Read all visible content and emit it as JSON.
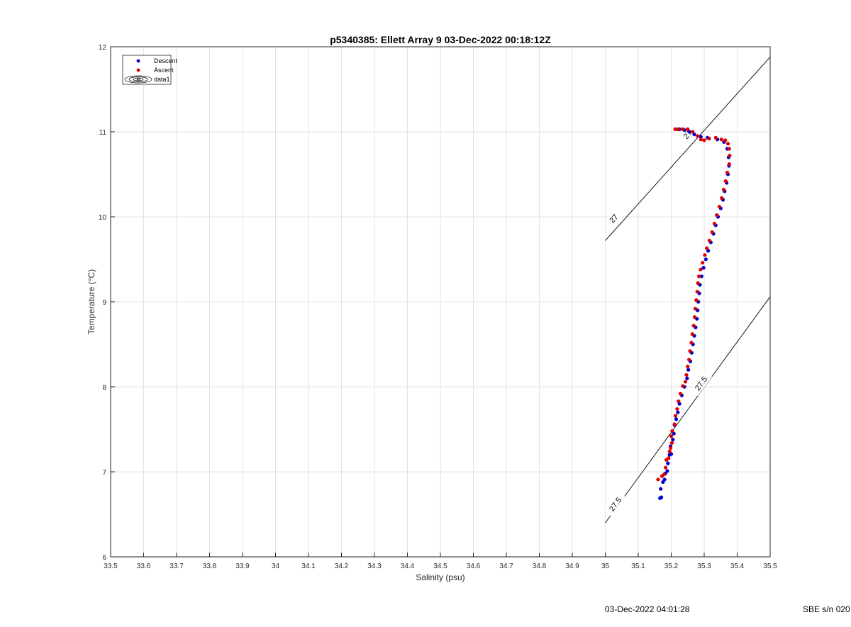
{
  "chart_data": {
    "type": "scatter",
    "title": "p5340385: Ellett Array 9 03-Dec-2022 00:18:12Z",
    "xlabel": "Salinity (psu)",
    "ylabel": "Temperature (°C)",
    "xlim": [
      33.5,
      35.5
    ],
    "ylim": [
      6,
      12
    ],
    "xticks": [
      "33.5",
      "33.6",
      "33.7",
      "33.8",
      "33.9",
      "34",
      "34.1",
      "34.2",
      "34.3",
      "34.4",
      "34.5",
      "34.6",
      "34.7",
      "34.8",
      "34.9",
      "35",
      "35.1",
      "35.2",
      "35.3",
      "35.4",
      "35.5"
    ],
    "yticks": [
      "6",
      "7",
      "8",
      "9",
      "10",
      "11",
      "12"
    ],
    "grid": true,
    "legend_position": "top-left",
    "legend": [
      {
        "name": "Descent",
        "color": "#0000cc"
      },
      {
        "name": "Ascent",
        "color": "#dd0000"
      },
      {
        "name": "data1",
        "color": "#000000"
      }
    ],
    "series": [
      {
        "name": "Descent",
        "color": "#0000cc",
        "points": [
          [
            35.166,
            6.69
          ],
          [
            35.17,
            6.7
          ],
          [
            35.168,
            6.8
          ],
          [
            35.175,
            6.88
          ],
          [
            35.18,
            6.91
          ],
          [
            35.182,
            6.98
          ],
          [
            35.188,
            7.01
          ],
          [
            35.19,
            7.1
          ],
          [
            35.195,
            7.2
          ],
          [
            35.2,
            7.21
          ],
          [
            35.198,
            7.3
          ],
          [
            35.205,
            7.38
          ],
          [
            35.208,
            7.45
          ],
          [
            35.21,
            7.55
          ],
          [
            35.215,
            7.62
          ],
          [
            35.22,
            7.7
          ],
          [
            35.225,
            7.8
          ],
          [
            35.232,
            7.9
          ],
          [
            35.24,
            8.0
          ],
          [
            35.248,
            8.1
          ],
          [
            35.252,
            8.2
          ],
          [
            35.258,
            8.3
          ],
          [
            35.262,
            8.4
          ],
          [
            35.266,
            8.5
          ],
          [
            35.27,
            8.6
          ],
          [
            35.274,
            8.7
          ],
          [
            35.278,
            8.8
          ],
          [
            35.28,
            8.9
          ],
          [
            35.282,
            9.0
          ],
          [
            35.285,
            9.1
          ],
          [
            35.287,
            9.2
          ],
          [
            35.292,
            9.3
          ],
          [
            35.298,
            9.4
          ],
          [
            35.305,
            9.5
          ],
          [
            35.312,
            9.6
          ],
          [
            35.32,
            9.7
          ],
          [
            35.328,
            9.8
          ],
          [
            35.335,
            9.9
          ],
          [
            35.342,
            10.0
          ],
          [
            35.35,
            10.1
          ],
          [
            35.357,
            10.2
          ],
          [
            35.362,
            10.3
          ],
          [
            35.368,
            10.4
          ],
          [
            35.372,
            10.5
          ],
          [
            35.375,
            10.6
          ],
          [
            35.374,
            10.7
          ],
          [
            35.37,
            10.8
          ],
          [
            35.36,
            10.88
          ],
          [
            35.34,
            10.91
          ],
          [
            35.31,
            10.93
          ],
          [
            35.29,
            10.94
          ],
          [
            35.27,
            10.97
          ],
          [
            35.255,
            11.0
          ],
          [
            35.24,
            11.02
          ],
          [
            35.225,
            11.03
          ]
        ]
      },
      {
        "name": "Ascent",
        "color": "#dd0000",
        "points": [
          [
            35.16,
            6.91
          ],
          [
            35.172,
            6.95
          ],
          [
            35.178,
            6.97
          ],
          [
            35.183,
            7.05
          ],
          [
            35.185,
            7.14
          ],
          [
            35.192,
            7.16
          ],
          [
            35.195,
            7.24
          ],
          [
            35.198,
            7.28
          ],
          [
            35.202,
            7.34
          ],
          [
            35.2,
            7.42
          ],
          [
            35.203,
            7.48
          ],
          [
            35.21,
            7.56
          ],
          [
            35.213,
            7.66
          ],
          [
            35.218,
            7.74
          ],
          [
            35.222,
            7.83
          ],
          [
            35.228,
            7.92
          ],
          [
            35.235,
            8.01
          ],
          [
            35.243,
            8.06
          ],
          [
            35.246,
            8.14
          ],
          [
            35.25,
            8.24
          ],
          [
            35.254,
            8.32
          ],
          [
            35.257,
            8.42
          ],
          [
            35.261,
            8.52
          ],
          [
            35.264,
            8.62
          ],
          [
            35.268,
            8.72
          ],
          [
            35.271,
            8.82
          ],
          [
            35.273,
            8.92
          ],
          [
            35.276,
            9.02
          ],
          [
            35.279,
            9.12
          ],
          [
            35.281,
            9.22
          ],
          [
            35.284,
            9.3
          ],
          [
            35.289,
            9.38
          ],
          [
            35.295,
            9.46
          ],
          [
            35.302,
            9.55
          ],
          [
            35.308,
            9.63
          ],
          [
            35.316,
            9.72
          ],
          [
            35.324,
            9.82
          ],
          [
            35.331,
            9.92
          ],
          [
            35.338,
            10.02
          ],
          [
            35.346,
            10.12
          ],
          [
            35.353,
            10.22
          ],
          [
            35.359,
            10.32
          ],
          [
            35.365,
            10.42
          ],
          [
            35.37,
            10.52
          ],
          [
            35.376,
            10.62
          ],
          [
            35.377,
            10.72
          ],
          [
            35.376,
            10.8
          ],
          [
            35.372,
            10.86
          ],
          [
            35.364,
            10.9
          ],
          [
            35.352,
            10.91
          ],
          [
            35.335,
            10.93
          ],
          [
            35.315,
            10.92
          ],
          [
            35.3,
            10.9
          ],
          [
            35.29,
            10.91
          ],
          [
            35.28,
            10.95
          ],
          [
            35.265,
            11.0
          ],
          [
            35.25,
            11.03
          ],
          [
            35.235,
            11.03
          ],
          [
            35.22,
            11.03
          ],
          [
            35.212,
            11.03
          ]
        ]
      }
    ],
    "contours": [
      {
        "label": "27",
        "points": [
          [
            35.0,
            9.72
          ],
          [
            35.5,
            11.88
          ]
        ],
        "label_at": [
          [
            35.025,
            9.98
          ],
          [
            35.25,
            10.97
          ]
        ]
      },
      {
        "label": "27.5",
        "points": [
          [
            35.0,
            6.4
          ],
          [
            35.5,
            9.06
          ]
        ],
        "label_at": [
          [
            35.03,
            6.62
          ],
          [
            35.29,
            8.04
          ]
        ]
      }
    ]
  },
  "footer": {
    "timestamp": "03-Dec-2022 04:01:28",
    "serial": "SBE s/n 020"
  }
}
